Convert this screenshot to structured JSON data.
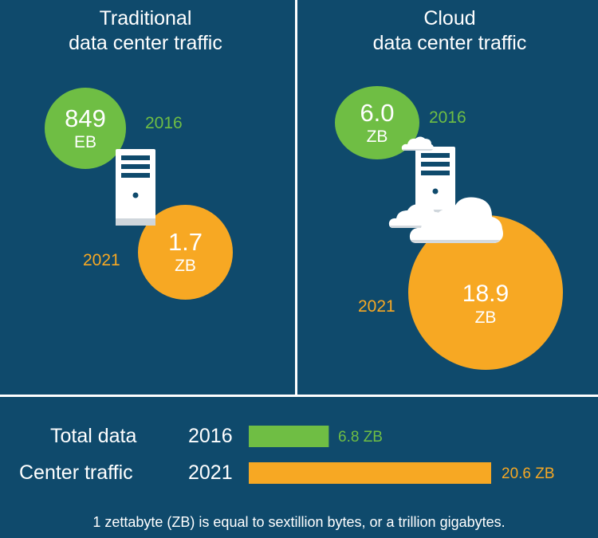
{
  "colors": {
    "background": "#0f4a6c",
    "green": "#6fbe44",
    "orange": "#f7a823",
    "white": "#ffffff"
  },
  "panels": {
    "traditional": {
      "title_line1": "Traditional",
      "title_line2": "data center traffic",
      "year_2016": "2016",
      "value_2016": "849",
      "unit_2016": "EB",
      "year_2021": "2021",
      "value_2021": "1.7",
      "unit_2021": "ZB"
    },
    "cloud": {
      "title_line1": "Cloud",
      "title_line2": "data center traffic",
      "year_2016": "2016",
      "value_2016": "6.0",
      "unit_2016": "ZB",
      "year_2021": "2021",
      "value_2021": "18.9",
      "unit_2021": "ZB"
    }
  },
  "bars": {
    "label_total": "Total data",
    "label_center": "Center traffic",
    "year_2016": "2016",
    "year_2021": "2021",
    "value_2016_text": "6.8 ZB",
    "value_2021_text": "20.6 ZB"
  },
  "footnote": "1 zettabyte (ZB) is equal to sextillion bytes, or a trillion gigabytes.",
  "icons": [
    "server-icon",
    "cloud-icon"
  ],
  "chart_data": [
    {
      "type": "bubble",
      "title": "Traditional data center traffic",
      "series": [
        {
          "name": "2016",
          "value": 849,
          "unit": "EB",
          "color": "#6fbe44"
        },
        {
          "name": "2021",
          "value": 1.7,
          "unit": "ZB",
          "color": "#f7a823"
        }
      ]
    },
    {
      "type": "bubble",
      "title": "Cloud data center traffic",
      "series": [
        {
          "name": "2016",
          "value": 6.0,
          "unit": "ZB",
          "color": "#6fbe44"
        },
        {
          "name": "2021",
          "value": 18.9,
          "unit": "ZB",
          "color": "#f7a823"
        }
      ]
    },
    {
      "type": "bar",
      "categories": [
        "2016",
        "2021"
      ],
      "values": [
        6.8,
        20.6
      ],
      "unit": "ZB",
      "colors": [
        "#6fbe44",
        "#f7a823"
      ]
    }
  ]
}
